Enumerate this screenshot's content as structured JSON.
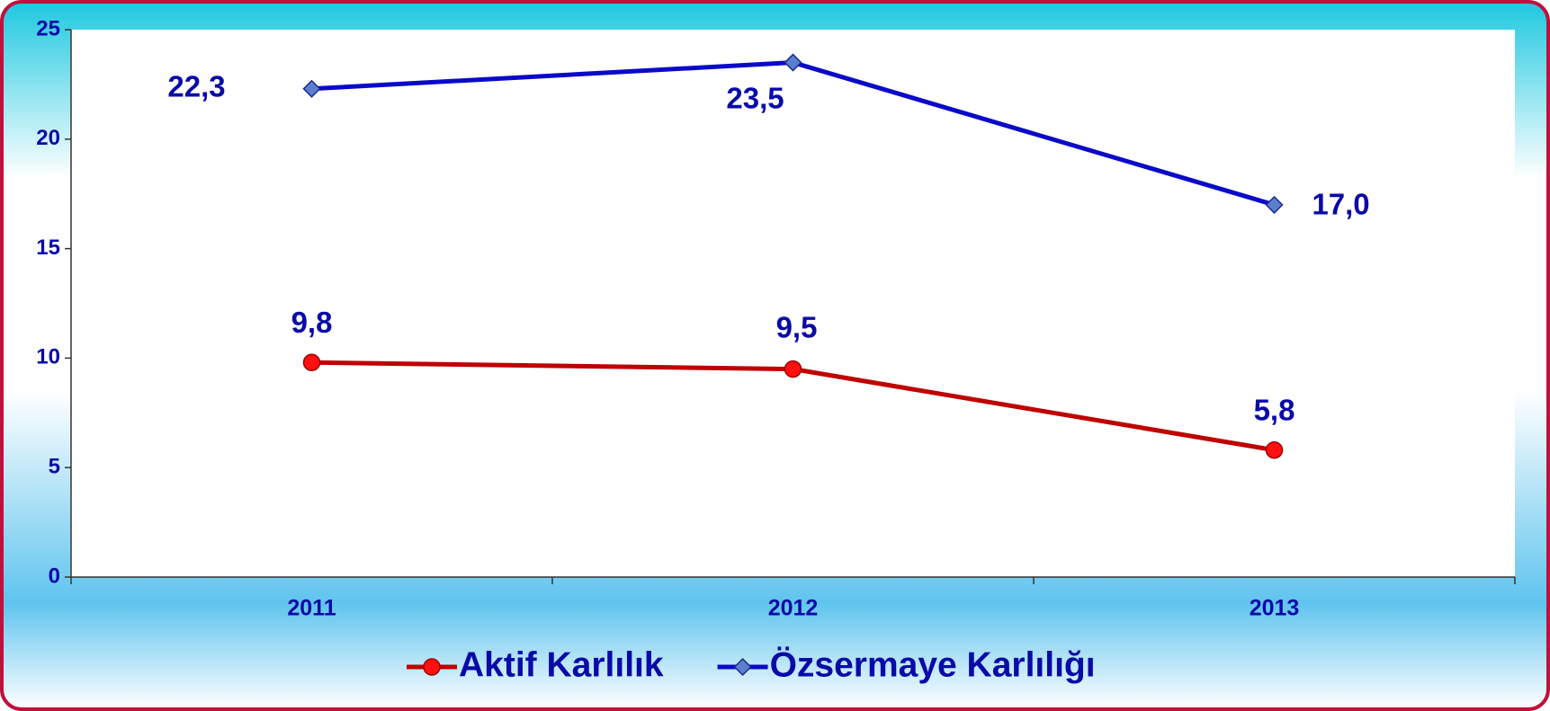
{
  "chart_data": {
    "type": "line",
    "categories": [
      "2011",
      "2012",
      "2013"
    ],
    "series": [
      {
        "name": "Aktif Karlılık",
        "color": "#c00000",
        "marker_color": "#ff1010",
        "marker": "circle",
        "values": [
          9.8,
          9.5,
          5.8
        ],
        "value_labels": [
          "9,8",
          "9,5",
          "5,8"
        ]
      },
      {
        "name": "Özsermaye Karlılığı",
        "color": "#0a0ac8",
        "marker_color": "#5b7fd0",
        "marker": "diamond",
        "values": [
          22.3,
          23.5,
          17.0
        ],
        "value_labels": [
          "22,3",
          "23,5",
          "17,0"
        ]
      }
    ],
    "ylim": [
      0,
      25
    ],
    "yticks": [
      0,
      5,
      10,
      15,
      20,
      25
    ],
    "grid": false,
    "legend": "bottom"
  }
}
